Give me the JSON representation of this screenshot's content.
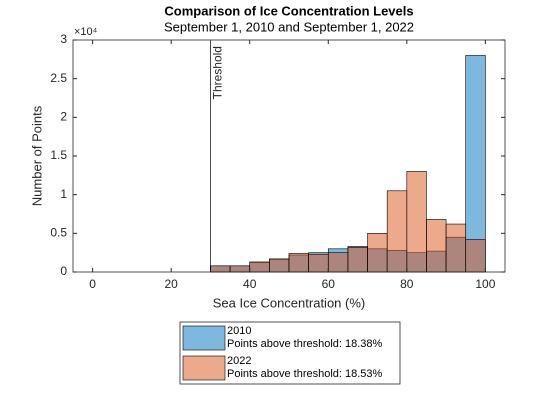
{
  "chart_data": {
    "type": "histogram",
    "title": "Comparison of Ice Concentration Levels",
    "subtitle": "September 1, 2010 and September 1, 2022",
    "x_label": "Sea Ice Concentration (%)",
    "y_label": "Number of Points",
    "y_exponent_label": "×10⁴",
    "bins": [
      30,
      35,
      40,
      45,
      50,
      55,
      60,
      65,
      70,
      75,
      80,
      85,
      90,
      95,
      100
    ],
    "series": [
      {
        "name": "2010",
        "note": "Points above threshold: 18.38%",
        "color": "#0072BD",
        "values": [
          0.08,
          0.08,
          0.12,
          0.16,
          0.22,
          0.25,
          0.3,
          0.33,
          0.3,
          0.28,
          0.25,
          0.27,
          0.45,
          2.8
        ]
      },
      {
        "name": "2022",
        "note": "Points above threshold: 18.53%",
        "color": "#D95319",
        "values": [
          0.08,
          0.08,
          0.13,
          0.17,
          0.24,
          0.23,
          0.25,
          0.32,
          0.5,
          1.05,
          1.3,
          0.68,
          0.62,
          0.42
        ]
      }
    ],
    "threshold": {
      "x": 30,
      "label": "Threshold"
    },
    "xlim": [
      -5,
      105
    ],
    "xticks": [
      0,
      20,
      40,
      60,
      80,
      100
    ],
    "ylim": [
      0,
      3
    ],
    "yticks": [
      0,
      0.5,
      1,
      1.5,
      2,
      2.5,
      3
    ],
    "grid": false,
    "legend_position": "bottom"
  }
}
